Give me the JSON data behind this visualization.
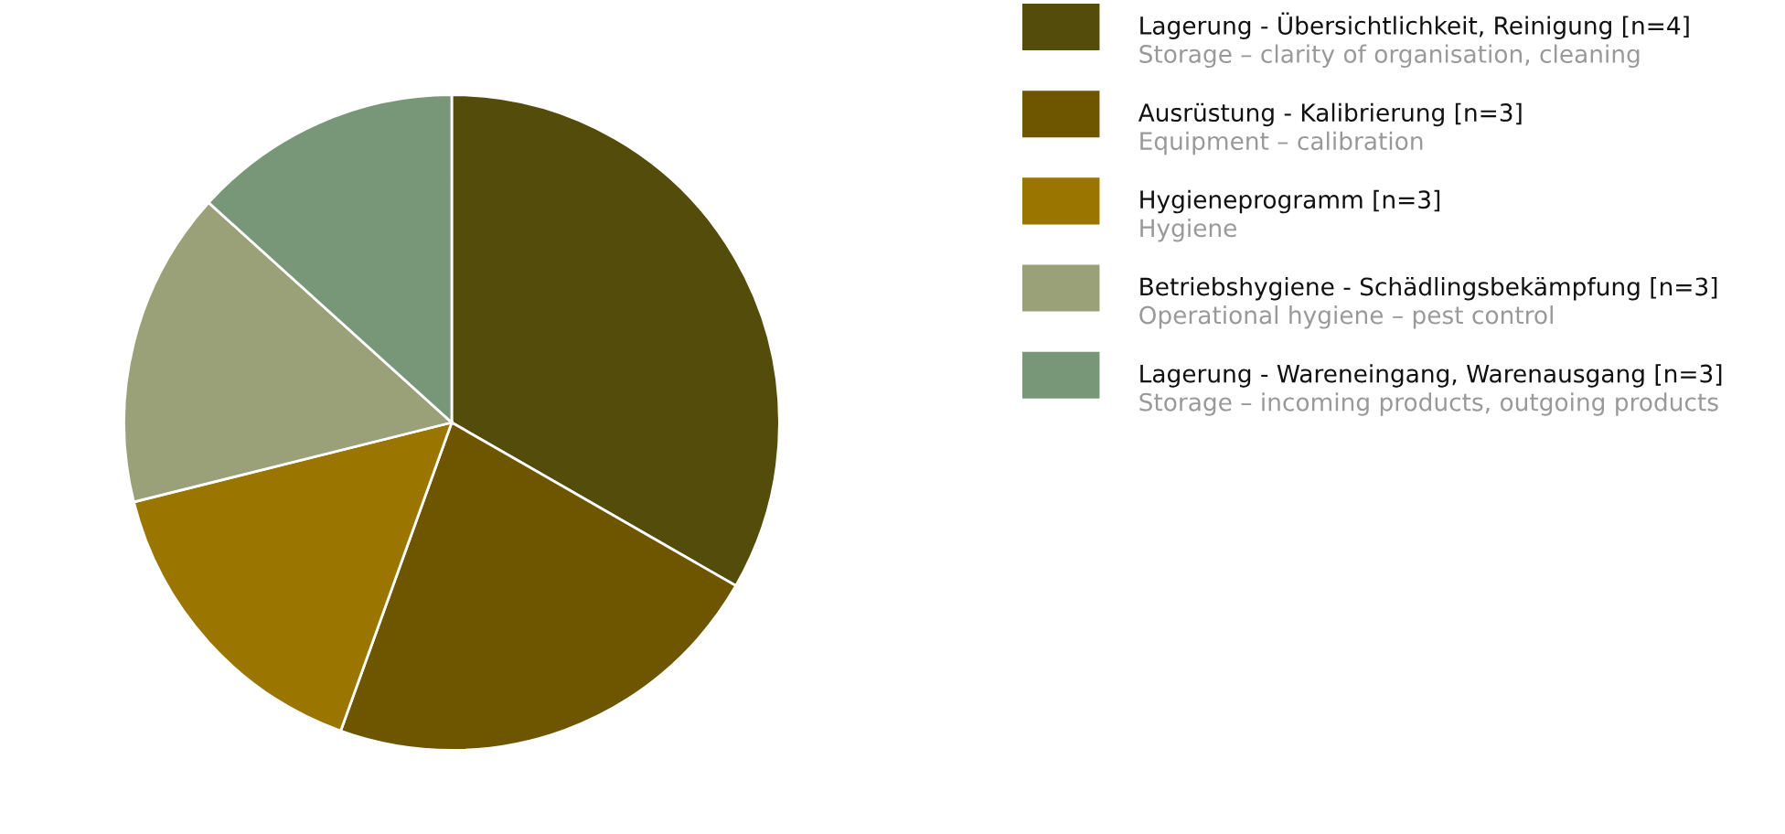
{
  "chart_data": {
    "type": "pie",
    "legend": "right",
    "categories": [
      "Lagerung - Übersichtlichkeit, Reinigung [n=4]\nStorage – clarity of organisation, cleaning",
      "Ausrüstung - Kalibrierung [n=3]\nEquipment – calibration",
      "Hygieneprogramm [n=3]\nHygiene",
      "Betriebshygiene - Schädlingsbekämpfung [n=3]\nOperational hygiene – pest control",
      "Lagerung - Wareneingang, Warenausgang [n=3]\nStorage – incoming products, outgoing products"
    ],
    "values": [
      33.3,
      22.2,
      15.6,
      15.6,
      13.3
    ],
    "colors": [
      "#544c0a",
      "#6e5500",
      "#9a7600",
      "#9aa078",
      "#789678"
    ]
  }
}
